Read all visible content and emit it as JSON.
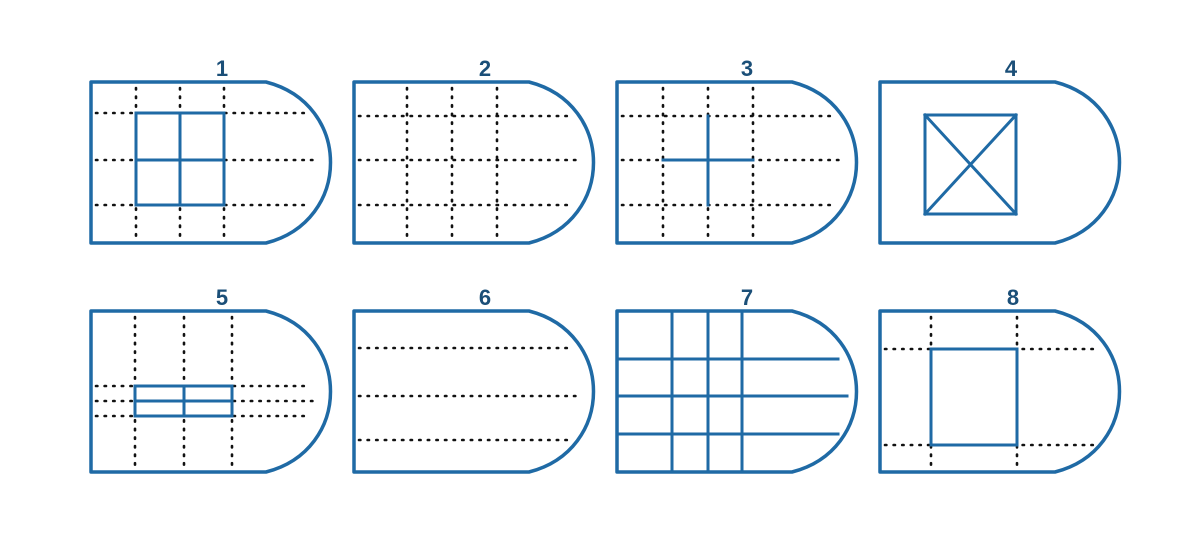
{
  "panels": [
    {
      "number": "1"
    },
    {
      "number": "2"
    },
    {
      "number": "3"
    },
    {
      "number": "4"
    },
    {
      "number": "5"
    },
    {
      "number": "6"
    },
    {
      "number": "7"
    },
    {
      "number": "8"
    }
  ]
}
